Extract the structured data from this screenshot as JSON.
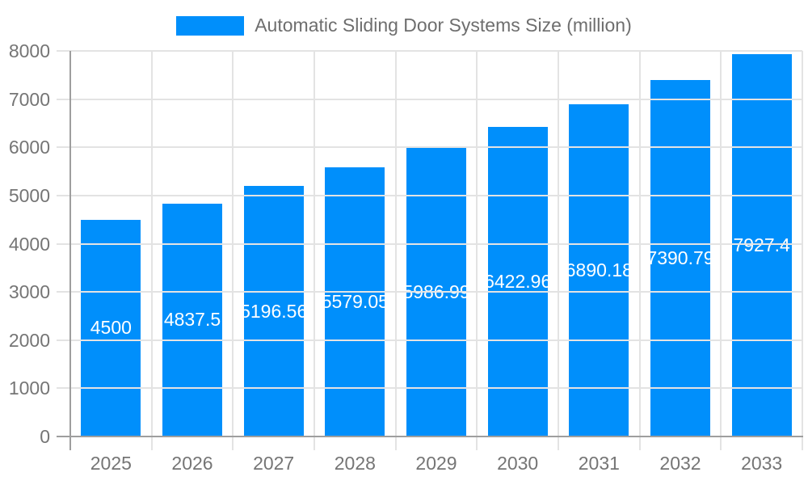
{
  "chart_data": {
    "type": "bar",
    "title": "Automatic Sliding Door Systems Size (million)",
    "categories": [
      "2025",
      "2026",
      "2027",
      "2028",
      "2029",
      "2030",
      "2031",
      "2032",
      "2033"
    ],
    "values": [
      4500,
      4837.5,
      5196.56,
      5579.05,
      5986.99,
      6422.96,
      6890.18,
      7390.79,
      7927.4
    ],
    "value_labels": [
      "4500",
      "4837.5",
      "5196.56",
      "5579.05",
      "5986.99",
      "6422.96",
      "6890.18",
      "7390.79",
      "7927.4"
    ],
    "xlabel": "",
    "ylabel": "",
    "ylim": [
      0,
      8000
    ],
    "y_ticks": [
      0,
      1000,
      2000,
      3000,
      4000,
      5000,
      6000,
      7000,
      8000
    ],
    "y_tick_labels": [
      "0",
      "1000",
      "2000",
      "3000",
      "4000",
      "5000",
      "6000",
      "7000",
      "8000"
    ],
    "grid": true,
    "legend_position": "top",
    "colors": {
      "bar": "#008FFB",
      "bar_label": "#FFFFFF",
      "axis_text": "#757575",
      "legend_text": "#6E6E6E",
      "gridline": "#E3E3E3",
      "axis_line": "#9E9E9E",
      "background": "#FFFFFF"
    }
  }
}
